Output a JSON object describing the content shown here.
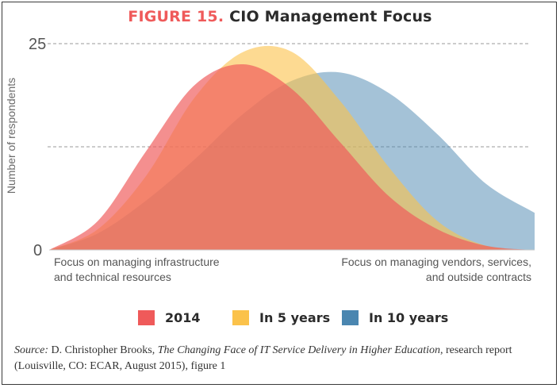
{
  "chart_data": {
    "type": "area",
    "title_prefix": "FIGURE 15.",
    "title": "CIO Management Focus",
    "ylabel": "Number of respondents",
    "ylim": [
      0,
      25
    ],
    "yticks": [
      {
        "value": 0,
        "label": "0"
      },
      {
        "value": 25,
        "label": "25"
      }
    ],
    "gridlines": [
      12.5,
      25
    ],
    "x_endpoint_labels": {
      "left": "Focus on managing infrastructure\nand technical resources",
      "right": "Focus on managing vendors, services,\nand outside contracts"
    },
    "x_range": [
      0,
      1
    ],
    "series": [
      {
        "name": "2014",
        "color": "#ef5a5a",
        "x": [
          0,
          0.1,
          0.2,
          0.3,
          0.4,
          0.5,
          0.6,
          0.7,
          0.8,
          0.9,
          1.0
        ],
        "values": [
          0,
          3.5,
          12,
          20,
          22.5,
          19.5,
          13,
          6.5,
          2.5,
          0.5,
          0
        ]
      },
      {
        "name": "In 5 years",
        "color": "#fbc24a",
        "x": [
          0,
          0.1,
          0.2,
          0.3,
          0.4,
          0.5,
          0.6,
          0.7,
          0.8,
          0.9,
          1.0
        ],
        "values": [
          0,
          2.5,
          9,
          18.5,
          24,
          24,
          18,
          10,
          3.5,
          0.5,
          0
        ]
      },
      {
        "name": "In 10 years",
        "color": "#4a86b0",
        "x": [
          0,
          0.1,
          0.2,
          0.3,
          0.4,
          0.5,
          0.6,
          0.7,
          0.8,
          0.9,
          1.0
        ],
        "values": [
          0,
          2,
          6,
          11,
          16.5,
          20.5,
          21.5,
          19,
          14,
          8,
          4.5
        ]
      }
    ]
  },
  "legend": [
    {
      "label": "2014",
      "color": "#ef5a5a"
    },
    {
      "label": "In 5 years",
      "color": "#fbc24a"
    },
    {
      "label": "In 10 years",
      "color": "#4a86b0"
    }
  ],
  "source": {
    "prefix": "Source:",
    "author": " D. Christopher Brooks, ",
    "work": "The Changing Face of IT Service Delivery in Higher Education",
    "rest": ", research report (Louisville, CO: ECAR, August 2015), figure 1"
  }
}
